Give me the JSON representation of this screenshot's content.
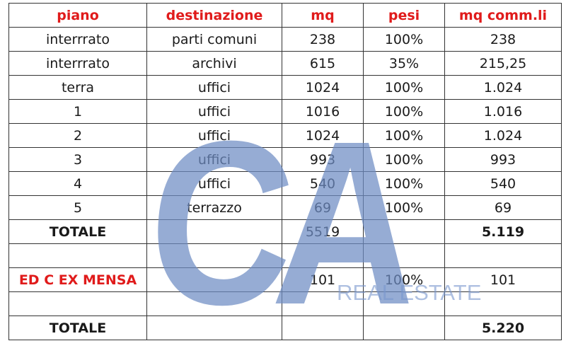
{
  "headers": [
    "piano",
    "destinazione",
    "mq",
    "pesi",
    "mq comm.li"
  ],
  "rows": [
    [
      "interrrato",
      "parti comuni",
      "238",
      "100%",
      "238"
    ],
    [
      "interrrato",
      "archivi",
      "615",
      "35%",
      "215,25"
    ],
    [
      "terra",
      "uffici",
      "1024",
      "100%",
      "1.024"
    ],
    [
      "1",
      "uffici",
      "1016",
      "100%",
      "1.016"
    ],
    [
      "2",
      "uffici",
      "1024",
      "100%",
      "1.024"
    ],
    [
      "3",
      "uffici",
      "993",
      "100%",
      "993"
    ],
    [
      "4",
      "uffici",
      "540",
      "100%",
      "540"
    ],
    [
      "5",
      "terrazzo",
      "69",
      "100%",
      "69"
    ]
  ],
  "totale1": {
    "label": "TOTALE",
    "mq": "5519",
    "mq_comm": "5.119"
  },
  "mensa": {
    "label": "ED C EX MENSA",
    "mq": "101",
    "pesi": "100%",
    "mq_comm": "101"
  },
  "totale2": {
    "label": "TOTALE",
    "mq_comm": "5.220"
  },
  "watermark": {
    "logo": "CA",
    "text": "REAL ESTATE"
  },
  "colors": {
    "header": "#e01b1b",
    "watermark": "#6e8cc3"
  }
}
